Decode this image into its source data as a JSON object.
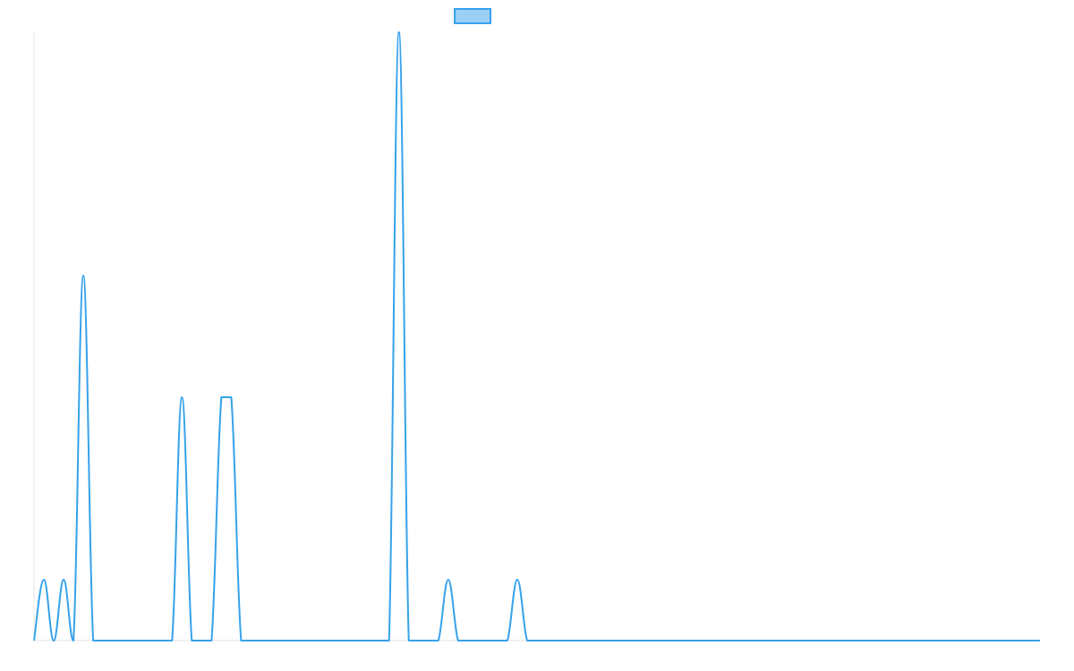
{
  "chart_data": {
    "type": "line",
    "title": "",
    "xlabel": "",
    "ylabel": "",
    "legend": "top-center",
    "grid": false,
    "ylim": [
      0,
      100
    ],
    "xlim": [
      0,
      102
    ],
    "x": [
      0,
      1,
      2,
      3,
      4,
      5,
      6,
      7,
      8,
      9,
      10,
      11,
      12,
      13,
      14,
      15,
      16,
      17,
      18,
      19,
      20,
      21,
      22,
      23,
      24,
      25,
      26,
      27,
      28,
      29,
      30,
      31,
      32,
      33,
      34,
      35,
      36,
      37,
      38,
      39,
      40,
      41,
      42,
      43,
      44,
      45,
      46,
      47,
      48,
      49,
      50,
      51,
      52,
      53,
      54,
      55,
      56,
      57,
      58,
      59,
      60,
      61,
      62,
      63,
      64,
      65,
      66,
      67,
      68,
      69,
      70,
      71,
      72,
      73,
      74,
      75,
      76,
      77,
      78,
      79,
      80,
      81,
      82,
      83,
      84,
      85,
      86,
      87,
      88,
      89,
      90,
      91,
      92,
      93,
      94,
      95,
      96,
      97,
      98,
      99,
      100,
      101,
      102
    ],
    "series": [
      {
        "values": [
          0,
          10,
          0,
          10,
          0,
          60,
          0,
          0,
          0,
          0,
          0,
          0,
          0,
          0,
          0,
          40,
          0,
          0,
          0,
          40,
          40,
          0,
          0,
          0,
          0,
          0,
          0,
          0,
          0,
          0,
          0,
          0,
          0,
          0,
          0,
          0,
          0,
          100,
          0,
          0,
          0,
          0,
          10,
          0,
          0,
          0,
          0,
          0,
          0,
          10,
          0,
          0,
          0,
          0,
          0,
          0,
          0,
          0,
          0,
          0,
          0,
          0,
          0,
          0,
          0,
          0,
          0,
          0,
          0,
          0,
          0,
          0,
          0,
          0,
          0,
          0,
          0,
          0,
          0,
          0,
          0,
          0,
          0,
          0,
          0,
          0,
          0,
          0,
          0,
          0,
          0,
          0,
          0,
          0,
          0,
          0,
          0,
          0,
          0,
          0,
          0,
          0,
          0
        ],
        "color": "#36a2eb",
        "fill": "#9ad0f5"
      }
    ]
  }
}
